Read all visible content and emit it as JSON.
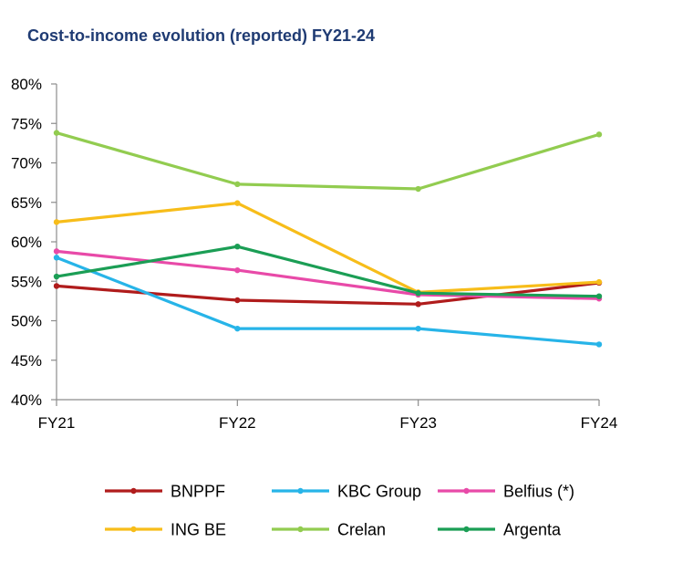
{
  "chart_data": {
    "type": "line",
    "title": "Cost-to-income evolution (reported) FY21-24",
    "xlabel": "",
    "ylabel": "",
    "categories": [
      "FY21",
      "FY22",
      "FY23",
      "FY24"
    ],
    "ylim": [
      40,
      80
    ],
    "yticks": [
      40,
      45,
      50,
      55,
      60,
      65,
      70,
      75,
      80
    ],
    "ytick_labels": [
      "40%",
      "45%",
      "50%",
      "55%",
      "60%",
      "65%",
      "70%",
      "75%",
      "80%"
    ],
    "grid": false,
    "legend_position": "bottom",
    "series": [
      {
        "name": "BNPPF",
        "color": "#b01c1c",
        "values": [
          54.4,
          52.6,
          52.1,
          54.8
        ]
      },
      {
        "name": "KBC Group",
        "color": "#27b4e8",
        "values": [
          58.0,
          49.0,
          49.0,
          47.0
        ]
      },
      {
        "name": "Belfius (*)",
        "color": "#e84aa8",
        "values": [
          58.8,
          56.4,
          53.3,
          52.8
        ]
      },
      {
        "name": "ING BE",
        "color": "#f7bd1a",
        "values": [
          62.5,
          64.9,
          53.6,
          54.9
        ]
      },
      {
        "name": "Crelan",
        "color": "#92cc50",
        "values": [
          73.8,
          67.3,
          66.7,
          73.6
        ]
      },
      {
        "name": "Argenta",
        "color": "#1b9e55",
        "values": [
          55.6,
          59.4,
          53.5,
          53.1
        ]
      }
    ]
  }
}
